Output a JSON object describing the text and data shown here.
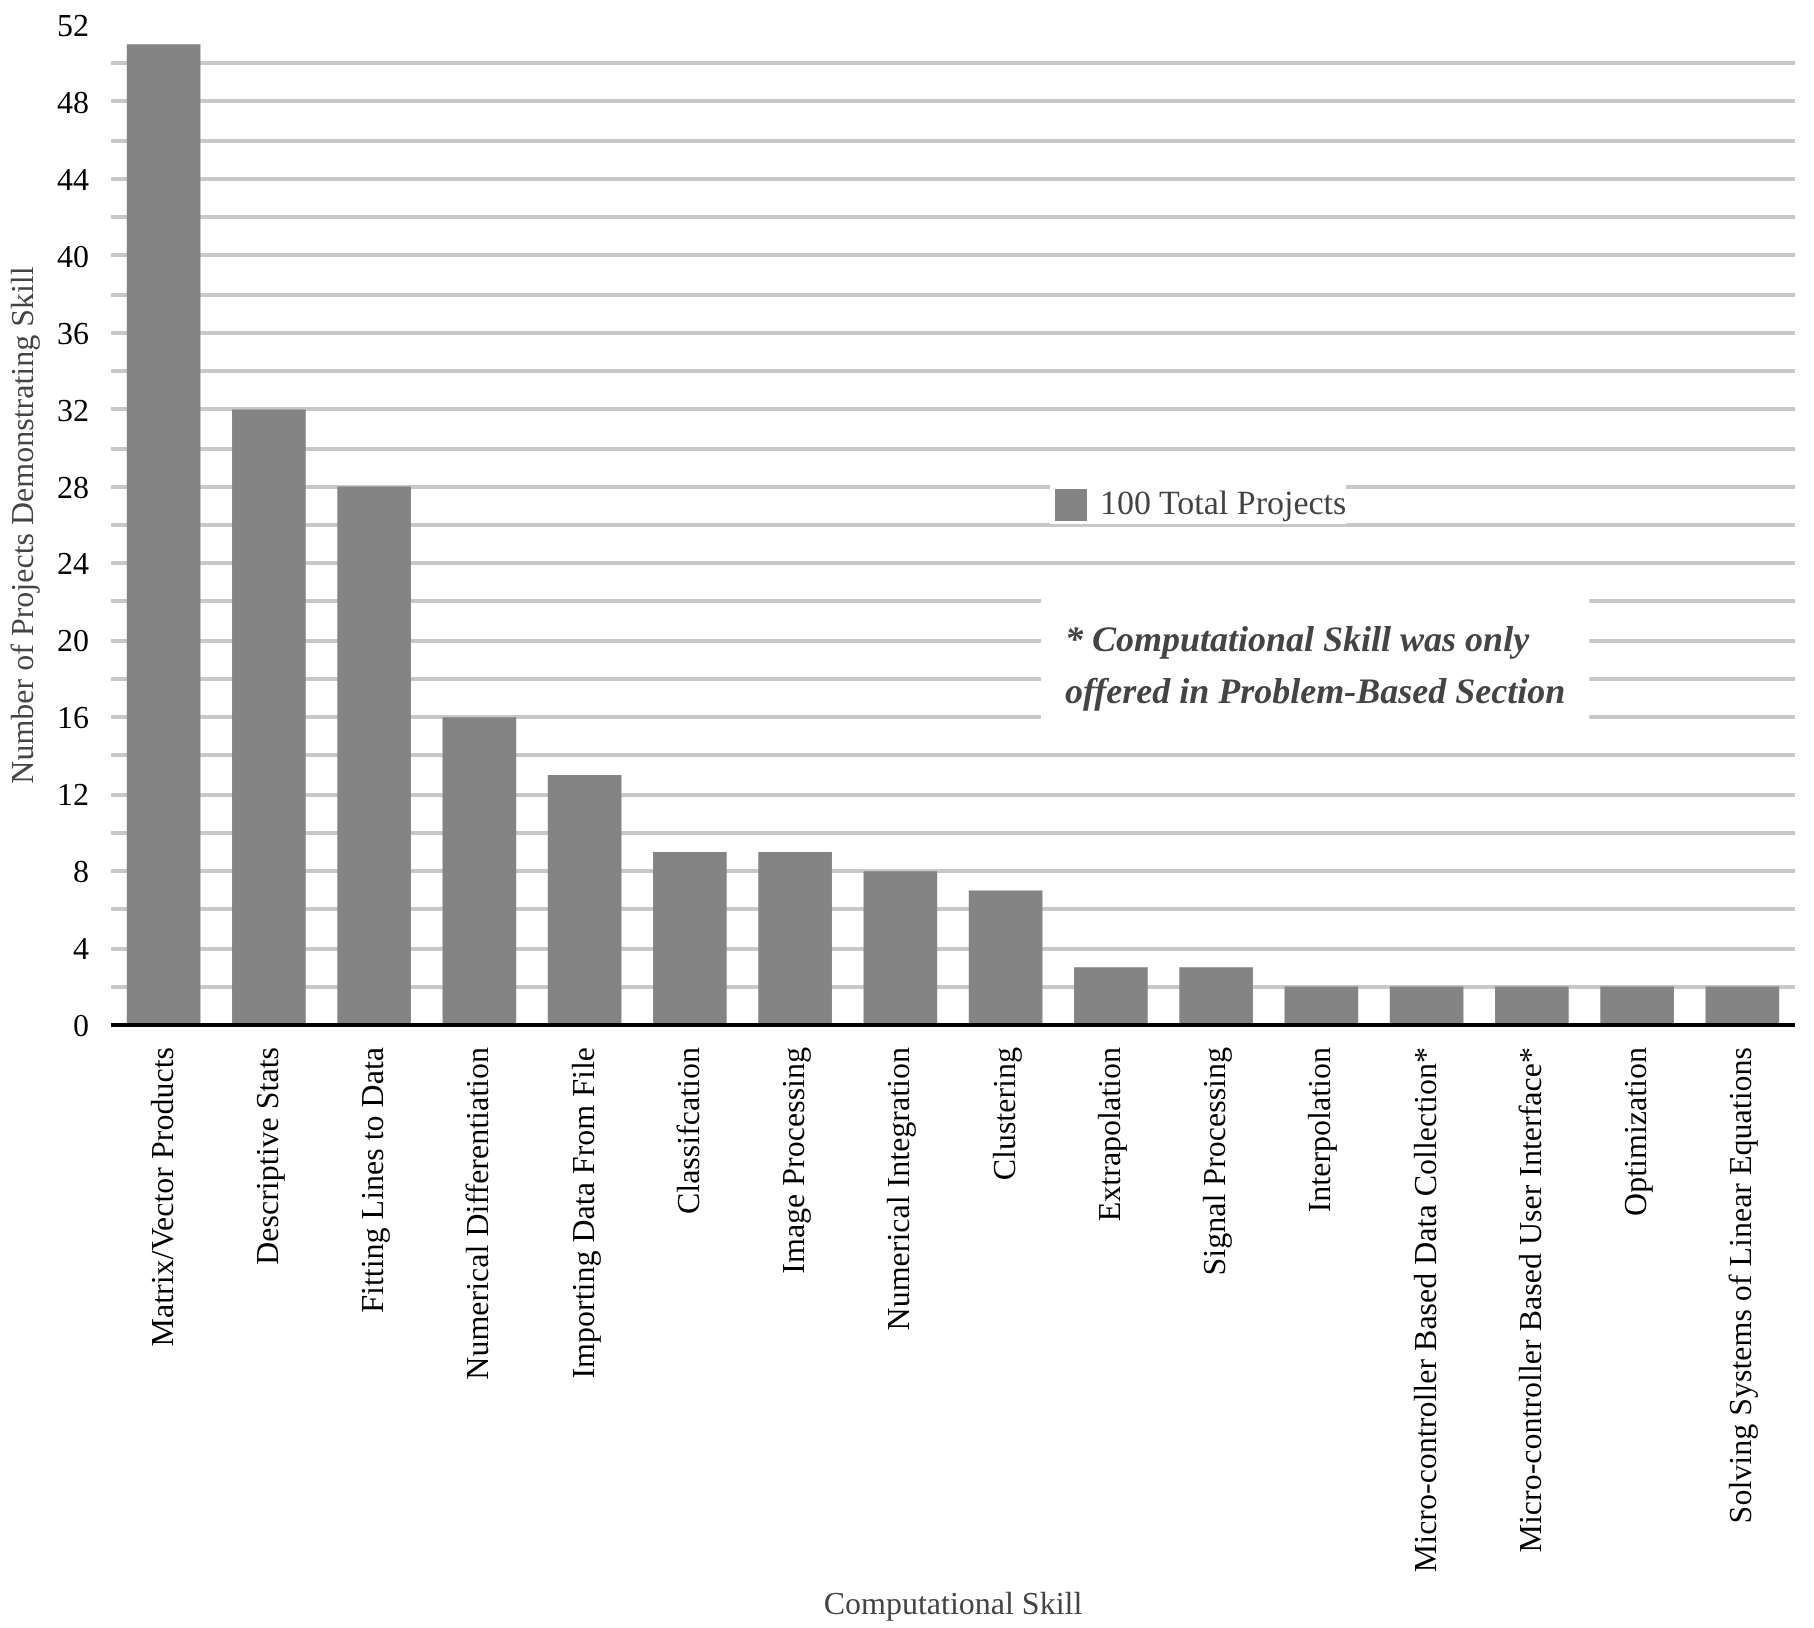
{
  "chart_data": {
    "type": "bar",
    "xlabel": "Computational Skill",
    "ylabel": "Number of Projects Demonstrating Skill",
    "categories": [
      "Matrix/Vector Products",
      "Descriptive Stats",
      "Fitting Lines to Data",
      "Numerical Differentiation",
      "Importing Data From File",
      "Classifcation",
      "Image Processing",
      "Numerical Integration",
      "Clustering",
      "Extrapolation",
      "Signal Processing",
      "Interpolation",
      "Micro-controller Based Data Collection*",
      "Micro-controller Based User Interface*",
      "Optimization",
      "Solving Systems of Linear Equations"
    ],
    "series": [
      {
        "name": "100 Total Projects",
        "color": "#848484",
        "values": [
          51,
          32,
          28,
          16,
          13,
          9,
          9,
          8,
          7,
          3,
          3,
          2,
          2,
          2,
          2,
          2
        ]
      }
    ],
    "ylim": [
      0,
      52
    ],
    "yticks": [
      0,
      {
        "value": 2,
        "label": null
      },
      4,
      {
        "value": 6,
        "label": null
      },
      8,
      {
        "value": 10,
        "label": null
      },
      12,
      {
        "value": 14,
        "label": null
      },
      16,
      {
        "value": 18,
        "label": null
      },
      20,
      {
        "value": 22,
        "label": null
      },
      24,
      {
        "value": 26,
        "label": null
      },
      28,
      {
        "value": 30,
        "label": null
      },
      32,
      {
        "value": 34,
        "label": null
      },
      36,
      {
        "value": 38,
        "label": null
      },
      40,
      {
        "value": 42,
        "label": null
      },
      44,
      {
        "value": 46,
        "label": null
      },
      48,
      {
        "value": 50,
        "label": null
      },
      52
    ],
    "grid": "y",
    "legend": "top right",
    "annotations": [
      "* Computational Skill was only offered in Problem-Based Section"
    ]
  }
}
